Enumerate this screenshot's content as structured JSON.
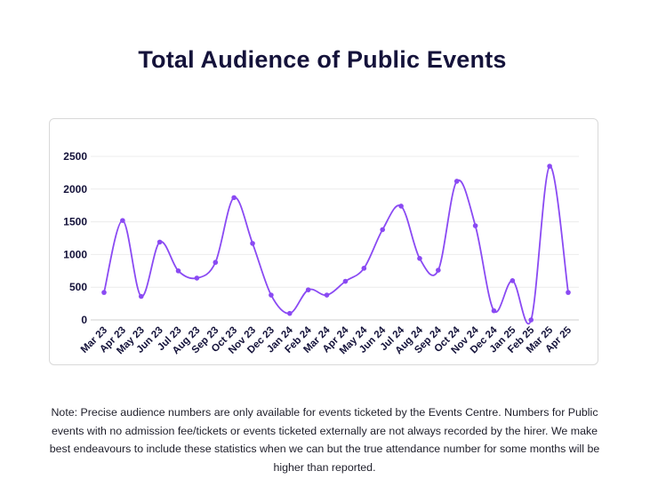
{
  "header": {
    "title": "Total Audience of Public Events"
  },
  "chart_data": {
    "type": "line",
    "title": "Total Audience of Public Events",
    "xlabel": "",
    "ylabel": "",
    "ylim": [
      0,
      2500
    ],
    "yticks": [
      0,
      500,
      1000,
      1500,
      2000,
      2500
    ],
    "grid": true,
    "categories": [
      "Mar 23",
      "Apr 23",
      "May 23",
      "Jun 23",
      "Jul 23",
      "Aug 23",
      "Sep 23",
      "Oct 23",
      "Nov 23",
      "Dec 23",
      "Jan 24",
      "Feb 24",
      "Mar 24",
      "Apr 24",
      "May 24",
      "Jun 24",
      "Jul 24",
      "Aug 24",
      "Sep 24",
      "Oct 24",
      "Nov 24",
      "Dec 24",
      "Jan 25",
      "Feb 25",
      "Mar 25",
      "Apr 25"
    ],
    "series": [
      {
        "name": "Total Audience",
        "color": "#8a4af3",
        "values": [
          420,
          1520,
          360,
          1190,
          750,
          640,
          880,
          1870,
          1170,
          380,
          100,
          460,
          380,
          590,
          790,
          1380,
          1740,
          940,
          760,
          2120,
          1440,
          140,
          600,
          0,
          2350,
          420
        ]
      }
    ]
  },
  "footer": {
    "note": "Note: Precise audience numbers are only available for events ticketed by the Events Centre. Numbers for Public events with no admission fee/tickets  or events ticketed externally are not always recorded by the hirer.  We make best endeavours to include these statistics when we can but the true attendance number for some months will be higher than reported."
  }
}
